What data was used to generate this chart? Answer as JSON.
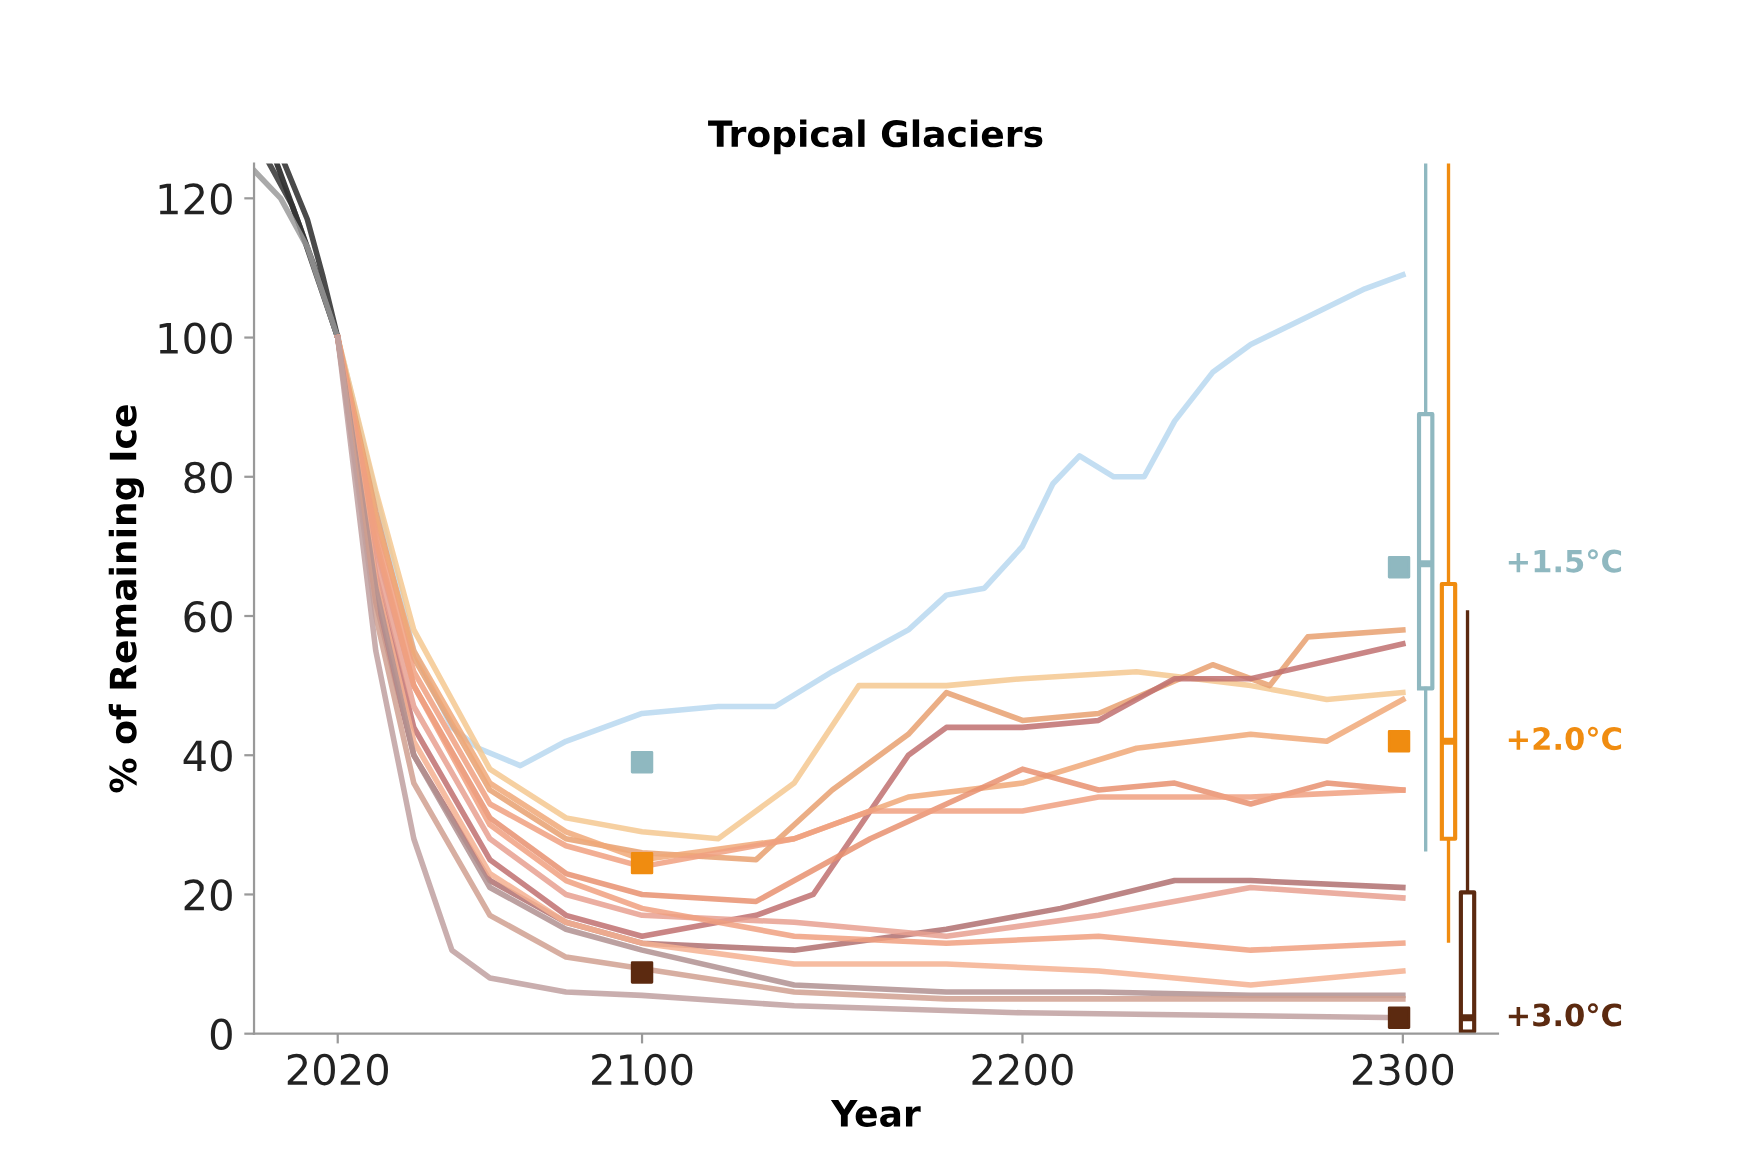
{
  "chart_data": {
    "type": "line",
    "title": "Tropical Glaciers",
    "xlabel": "Year",
    "ylabel": "% of Remaining Ice",
    "xlim": [
      1998,
      2325
    ],
    "ylim": [
      0,
      125
    ],
    "xticks": [
      2020,
      2100,
      2200,
      2300
    ],
    "yticks": [
      0,
      20,
      40,
      60,
      80,
      100,
      120
    ],
    "grid": false,
    "legend": false,
    "marker": "none",
    "line_style": "solid",
    "series": [
      {
        "color": "#1a1a1a",
        "x": [
          2004,
          2010,
          2015,
          2020
        ],
        "values": [
          125,
          116,
          108,
          100
        ]
      },
      {
        "color": "#2a2a2a",
        "x": [
          2006,
          2012,
          2016,
          2020
        ],
        "values": [
          125,
          117,
          109,
          100
        ]
      },
      {
        "color": "#333333",
        "x": [
          2002,
          2008,
          2014,
          2020
        ],
        "values": [
          125,
          119,
          110,
          100
        ]
      },
      {
        "color": "#9a9a9a",
        "x": [
          1998,
          2005,
          2012,
          2020
        ],
        "values": [
          124,
          120,
          113,
          100
        ]
      },
      {
        "color": "#b8d8f0",
        "x": [
          2020,
          2040,
          2050,
          2057,
          2068,
          2080,
          2100,
          2120,
          2135,
          2150,
          2160,
          2170,
          2180,
          2190,
          2200,
          2208,
          2215,
          2224,
          2232,
          2240,
          2250,
          2260,
          2275,
          2290,
          2300
        ],
        "values": [
          100,
          55,
          44,
          41,
          38.5,
          42,
          46,
          47,
          47,
          52,
          55,
          58,
          63,
          64,
          70,
          79,
          83,
          80,
          80,
          88,
          95,
          99,
          103,
          107,
          109
        ]
      },
      {
        "color": "#f5c890",
        "x": [
          2020,
          2030,
          2040,
          2060,
          2080,
          2100,
          2120,
          2140,
          2157,
          2180,
          2200,
          2230,
          2260,
          2280,
          2300
        ],
        "values": [
          100,
          78,
          58,
          38,
          31,
          29,
          28,
          36,
          50,
          50,
          51,
          52,
          50,
          48,
          49
        ]
      },
      {
        "color": "#e8a070",
        "x": [
          2020,
          2030,
          2040,
          2060,
          2080,
          2100,
          2130,
          2150,
          2170,
          2180,
          2200,
          2220,
          2250,
          2265,
          2275,
          2300
        ],
        "values": [
          100,
          75,
          54,
          35,
          28,
          26,
          25,
          35,
          43,
          49,
          45,
          46,
          53,
          50,
          57,
          58
        ]
      },
      {
        "color": "#c07070",
        "x": [
          2020,
          2030,
          2040,
          2060,
          2080,
          2100,
          2130,
          2145,
          2170,
          2180,
          2200,
          2220,
          2240,
          2260,
          2300
        ],
        "values": [
          100,
          66,
          44,
          25,
          17,
          14,
          17,
          20,
          40,
          44,
          44,
          45,
          51,
          51,
          56
        ]
      },
      {
        "color": "#f0a878",
        "x": [
          2020,
          2030,
          2040,
          2060,
          2080,
          2100,
          2140,
          2170,
          2200,
          2230,
          2260,
          2280,
          2300
        ],
        "values": [
          100,
          74,
          55,
          36,
          29,
          25,
          28,
          34,
          36,
          41,
          43,
          42,
          48
        ]
      },
      {
        "color": "#e89070",
        "x": [
          2020,
          2030,
          2040,
          2060,
          2080,
          2100,
          2130,
          2160,
          2180,
          2200,
          2220,
          2240,
          2260,
          2280,
          2300
        ],
        "values": [
          100,
          70,
          50,
          31,
          23,
          20,
          19,
          28,
          33,
          38,
          35,
          36,
          33,
          36,
          35
        ]
      },
      {
        "color": "#f0a080",
        "x": [
          2020,
          2030,
          2040,
          2060,
          2080,
          2100,
          2140,
          2160,
          2200,
          2220,
          2260,
          2300
        ],
        "values": [
          100,
          72,
          52,
          33,
          27,
          24,
          28,
          32,
          32,
          34,
          34,
          35
        ]
      },
      {
        "color": "#b07070",
        "x": [
          2020,
          2030,
          2040,
          2060,
          2080,
          2100,
          2140,
          2180,
          2210,
          2240,
          2260,
          2300
        ],
        "values": [
          100,
          62,
          40,
          22,
          16,
          13,
          12,
          15,
          18,
          22,
          22,
          21
        ]
      },
      {
        "color": "#e8a090",
        "x": [
          2020,
          2030,
          2040,
          2060,
          2080,
          2100,
          2140,
          2180,
          2220,
          2260,
          2300
        ],
        "values": [
          100,
          68,
          47,
          28,
          20,
          17,
          16,
          14,
          17,
          21,
          19.5
        ]
      },
      {
        "color": "#f0a080",
        "x": [
          2020,
          2030,
          2040,
          2060,
          2080,
          2100,
          2140,
          2180,
          2220,
          2260,
          2300
        ],
        "values": [
          100,
          71,
          50,
          30,
          22,
          18,
          14,
          13,
          14,
          12,
          13
        ]
      },
      {
        "color": "#f4b090",
        "x": [
          2020,
          2030,
          2040,
          2060,
          2080,
          2100,
          2140,
          2180,
          2220,
          2260,
          2300
        ],
        "values": [
          100,
          65,
          42,
          23,
          16,
          13,
          10,
          10,
          9,
          7,
          9
        ]
      },
      {
        "color": "#b09090",
        "x": [
          2020,
          2030,
          2040,
          2060,
          2080,
          2100,
          2140,
          2180,
          2220,
          2260,
          2300
        ],
        "values": [
          100,
          64,
          40,
          21,
          15,
          12,
          7,
          6,
          6,
          5.5,
          5.5
        ]
      },
      {
        "color": "#d0a090",
        "x": [
          2020,
          2030,
          2040,
          2060,
          2080,
          2140,
          2180,
          2300
        ],
        "values": [
          100,
          60,
          36,
          17,
          11,
          6,
          5,
          5
        ]
      },
      {
        "color": "#c0a0a0",
        "x": [
          2020,
          2030,
          2040,
          2050,
          2060,
          2080,
          2100,
          2140,
          2200,
          2300
        ],
        "values": [
          100,
          55,
          28,
          12,
          8,
          6,
          5.5,
          4,
          3,
          2.3
        ]
      },
      {
        "type": "scatter",
        "marker": "square",
        "color": "#8fb8c0",
        "x": [
          2100,
          2299
        ],
        "values": [
          39,
          67
        ]
      },
      {
        "type": "scatter",
        "marker": "square",
        "color": "#f08c10",
        "x": [
          2100,
          2299
        ],
        "values": [
          24.5,
          42
        ]
      },
      {
        "type": "scatter",
        "marker": "square",
        "color": "#5c2a10",
        "x": [
          2100,
          2299
        ],
        "values": [
          8.8,
          2.3
        ]
      },
      {
        "type": "box",
        "name": "+1.5°C",
        "color": "#8fb8c0",
        "x": [
          2306
        ],
        "boxes": [
          {
            "low": 26.4,
            "q1": 49.6,
            "median": 67.5,
            "q3": 89,
            "high": 125
          }
        ]
      },
      {
        "type": "box",
        "name": "+2.0°C",
        "color": "#f08c10",
        "x": [
          2312
        ],
        "boxes": [
          {
            "low": 13.3,
            "q1": 28,
            "median": 42,
            "q3": 64.6,
            "high": 125
          }
        ]
      },
      {
        "type": "box",
        "name": "+3.0°C",
        "color": "#5c2a10",
        "x": [
          2317
        ],
        "boxes": [
          {
            "low": 0,
            "q1": 0.3,
            "median": 2.3,
            "q3": 20.3,
            "high": 60.6
          }
        ]
      }
    ]
  }
}
